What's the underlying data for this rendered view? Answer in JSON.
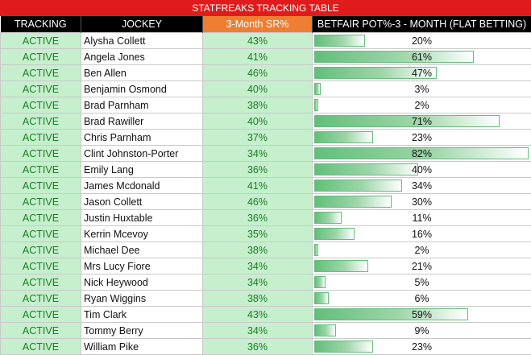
{
  "title": "STATFREAKS TRACKING TABLE",
  "headers": {
    "tracking": "TRACKING",
    "jockey": "JOCKEY",
    "sr": "3-Month SR%",
    "pot": "BETFAIR POT%-3 - MONTH (FLAT BETTING)"
  },
  "colors": {
    "title_bg": "#e11b1b",
    "header_bg": "#000000",
    "sr_header_bg": "#ef7e32",
    "active_bg": "#c6efce",
    "active_text": "#1e7b23",
    "bar": "#63be7b"
  },
  "rows": [
    {
      "status": "ACTIVE",
      "jockey": "Alysha Collett",
      "sr": "43%",
      "pot": "20%",
      "pot_value": 20
    },
    {
      "status": "ACTIVE",
      "jockey": "Angela Jones",
      "sr": "41%",
      "pot": "61%",
      "pot_value": 61
    },
    {
      "status": "ACTIVE",
      "jockey": "Ben Allen",
      "sr": "46%",
      "pot": "47%",
      "pot_value": 47
    },
    {
      "status": "ACTIVE",
      "jockey": "Benjamin Osmond",
      "sr": "40%",
      "pot": "3%",
      "pot_value": 3
    },
    {
      "status": "ACTIVE",
      "jockey": "Brad Parnham",
      "sr": "38%",
      "pot": "2%",
      "pot_value": 2
    },
    {
      "status": "ACTIVE",
      "jockey": "Brad Rawiller",
      "sr": "40%",
      "pot": "71%",
      "pot_value": 71
    },
    {
      "status": "ACTIVE",
      "jockey": "Chris Parnham",
      "sr": "37%",
      "pot": "23%",
      "pot_value": 23
    },
    {
      "status": "ACTIVE",
      "jockey": "Clint Johnston-Porter",
      "sr": "34%",
      "pot": "82%",
      "pot_value": 82
    },
    {
      "status": "ACTIVE",
      "jockey": "Emily Lang",
      "sr": "36%",
      "pot": "40%",
      "pot_value": 40
    },
    {
      "status": "ACTIVE",
      "jockey": "James Mcdonald",
      "sr": "41%",
      "pot": "34%",
      "pot_value": 34
    },
    {
      "status": "ACTIVE",
      "jockey": "Jason Collett",
      "sr": "46%",
      "pot": "30%",
      "pot_value": 30
    },
    {
      "status": "ACTIVE",
      "jockey": "Justin Huxtable",
      "sr": "36%",
      "pot": "11%",
      "pot_value": 11
    },
    {
      "status": "ACTIVE",
      "jockey": "Kerrin Mcevoy",
      "sr": "35%",
      "pot": "16%",
      "pot_value": 16
    },
    {
      "status": "ACTIVE",
      "jockey": "Michael Dee",
      "sr": "38%",
      "pot": "2%",
      "pot_value": 2
    },
    {
      "status": "ACTIVE",
      "jockey": "Mrs Lucy Fiore",
      "sr": "34%",
      "pot": "21%",
      "pot_value": 21
    },
    {
      "status": "ACTIVE",
      "jockey": "Nick Heywood",
      "sr": "34%",
      "pot": "5%",
      "pot_value": 5
    },
    {
      "status": "ACTIVE",
      "jockey": "Ryan Wiggins",
      "sr": "38%",
      "pot": "6%",
      "pot_value": 6
    },
    {
      "status": "ACTIVE",
      "jockey": "Tim Clark",
      "sr": "43%",
      "pot": "59%",
      "pot_value": 59
    },
    {
      "status": "ACTIVE",
      "jockey": "Tommy Berry",
      "sr": "34%",
      "pot": "9%",
      "pot_value": 9
    },
    {
      "status": "ACTIVE",
      "jockey": "William Pike",
      "sr": "36%",
      "pot": "23%",
      "pot_value": 23
    }
  ]
}
